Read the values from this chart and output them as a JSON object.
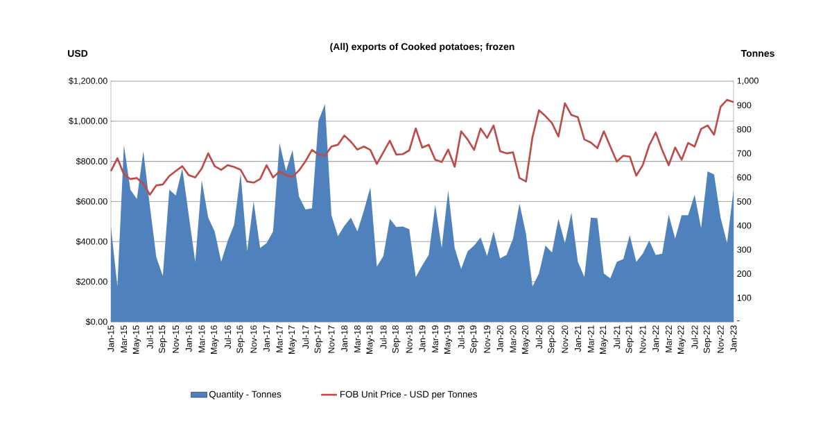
{
  "chart_data": {
    "type": "line",
    "title": "(All) exports of Cooked potatoes; frozen",
    "ylabel": "USD",
    "y2label": "Tonnes",
    "categories": [
      "Jan-15",
      null,
      "Mar-15",
      null,
      "May-15",
      null,
      "Jul-15",
      null,
      "Sep-15",
      null,
      "Nov-15",
      null,
      "Jan-16",
      null,
      "Mar-16",
      null,
      "May-16",
      null,
      "Jul-16",
      null,
      "Sep-16",
      null,
      "Nov-16",
      null,
      "Jan-17",
      null,
      "Mar-17",
      null,
      "May-17",
      null,
      "Jul-17",
      null,
      "Sep-17",
      null,
      "Nov-17",
      null,
      "Jan-18",
      null,
      "Mar-18",
      null,
      "May-18",
      null,
      "Jul-18",
      null,
      "Sep-18",
      null,
      "Nov-18",
      null,
      "Jan-19",
      null,
      "Mar-19",
      null,
      "May-19",
      null,
      "Jul-19",
      null,
      "Sep-19",
      null,
      "Nov-19",
      null,
      "Jan-20",
      null,
      "Mar-20",
      null,
      "May-20",
      null,
      "Jul-20",
      null,
      "Sep-20",
      null,
      "Nov-20",
      null,
      "Jan-21",
      null,
      "Mar-21",
      null,
      "May-21",
      null,
      "Jul-21",
      null,
      "Sep-21",
      null,
      "Nov-21",
      null,
      "Jan-22",
      null,
      "Mar-22",
      null,
      "May-22",
      null,
      "Jul-22",
      null,
      "Sep-22",
      null,
      "Nov-22",
      null,
      "Jan-23"
    ],
    "series": [
      {
        "name": "Quantity - Tonnes",
        "type": "area",
        "axis": "y2",
        "color": "#4f81bd",
        "values": [
          394,
          147,
          734,
          549,
          511,
          709,
          482,
          268,
          191,
          549,
          525,
          637,
          443,
          249,
          588,
          433,
          375,
          249,
          336,
          404,
          617,
          293,
          501,
          307,
          327,
          375,
          743,
          627,
          714,
          520,
          467,
          472,
          835,
          905,
          443,
          356,
          399,
          433,
          375,
          462,
          559,
          230,
          273,
          428,
          394,
          396,
          385,
          186,
          234,
          278,
          486,
          307,
          545,
          307,
          220,
          293,
          317,
          351,
          273,
          375,
          264,
          278,
          346,
          491,
          365,
          147,
          201,
          317,
          288,
          428,
          327,
          453,
          249,
          186,
          433,
          431,
          201,
          181,
          249,
          261,
          360,
          249,
          283,
          338,
          278,
          283,
          445,
          346,
          443,
          443,
          528,
          390,
          625,
          612,
          433,
          327,
          549
        ]
      },
      {
        "name": "FOB Unit Price - USD per Tonnes",
        "color": "#be4b48",
        "values": [
          752,
          816,
          735,
          712,
          717,
          688,
          634,
          680,
          685,
          727,
          752,
          776,
          731,
          720,
          764,
          840,
          776,
          758,
          781,
          772,
          758,
          700,
          694,
          712,
          781,
          720,
          750,
          731,
          723,
          755,
          801,
          857,
          834,
          828,
          874,
          883,
          929,
          898,
          859,
          874,
          857,
          787,
          845,
          903,
          834,
          836,
          855,
          964,
          869,
          883,
          808,
          797,
          859,
          773,
          950,
          909,
          857,
          964,
          917,
          979,
          851,
          840,
          845,
          717,
          700,
          921,
          1055,
          1026,
          991,
          924,
          1090,
          1031,
          1020,
          909,
          894,
          866,
          950,
          874,
          799,
          828,
          824,
          729,
          781,
          880,
          944,
          857,
          781,
          869,
          808,
          892,
          874,
          962,
          979,
          933,
          1072,
          1107,
          1095
        ]
      }
    ],
    "ylim": [
      0,
      1200
    ],
    "yticks": [
      {
        "value": 0,
        "label": "$0.00"
      },
      {
        "value": 200,
        "label": "$200.00"
      },
      {
        "value": 400,
        "label": "$400.00"
      },
      {
        "value": 600,
        "label": "$600.00"
      },
      {
        "value": 800,
        "label": "$800.00"
      },
      {
        "value": 1000,
        "label": "$1,000.00"
      },
      {
        "value": 1200,
        "label": "$1,200.00"
      }
    ],
    "y2lim": [
      0,
      1000
    ],
    "y2ticks": [
      {
        "value": 0,
        "label": "-"
      },
      100,
      200,
      300,
      400,
      500,
      600,
      700,
      800,
      900,
      {
        "value": 1000,
        "label": "1,000"
      }
    ],
    "grid": "y",
    "legend": "bottom"
  }
}
